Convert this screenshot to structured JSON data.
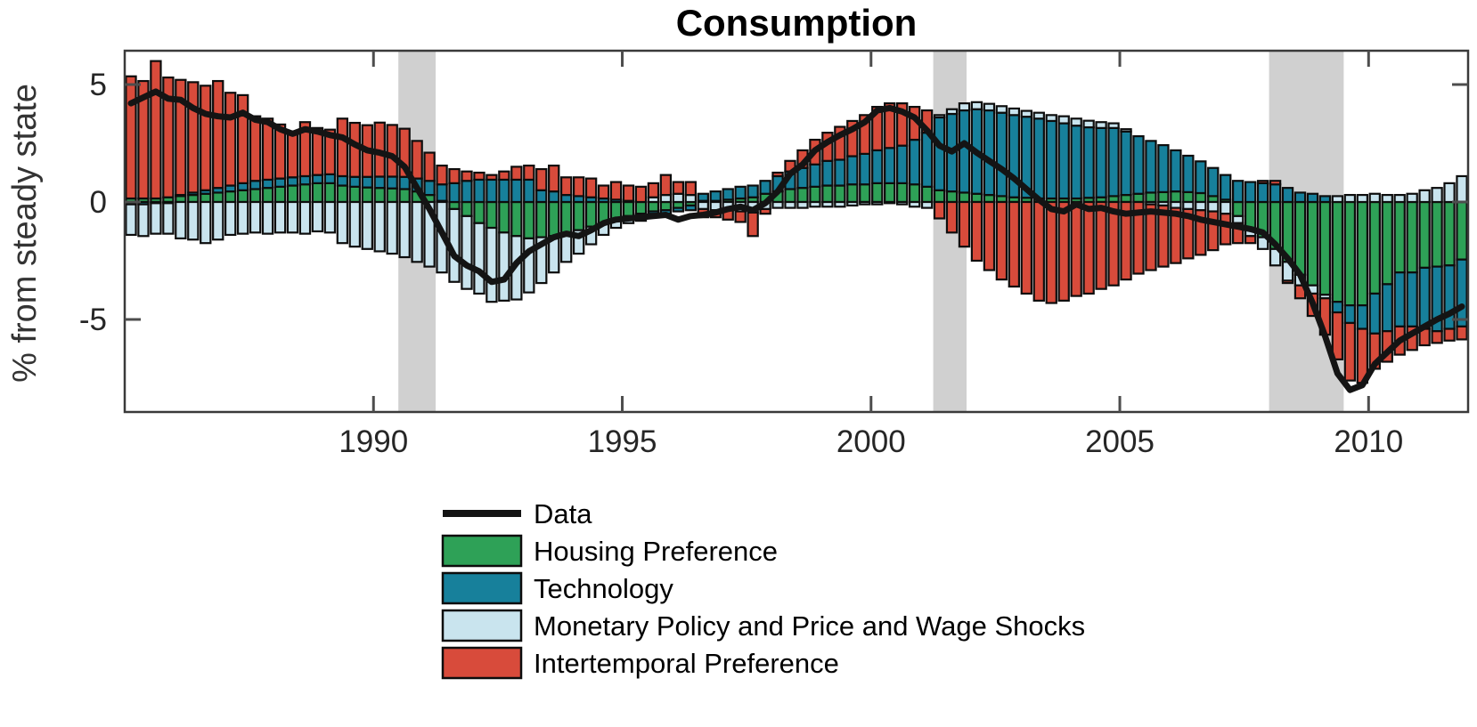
{
  "title": "Consumption",
  "ylabel": "% from steady state",
  "legend": {
    "items": [
      {
        "label": "Data",
        "type": "line",
        "color": "#141414"
      },
      {
        "label": "Housing Preference",
        "type": "box",
        "color": "#2ea157"
      },
      {
        "label": "Technology",
        "type": "box",
        "color": "#17809b"
      },
      {
        "label": "Monetary Policy and Price and Wage Shocks",
        "type": "box",
        "color": "#c9e4ee"
      },
      {
        "label": "Intertemporal Preference",
        "type": "box",
        "color": "#d84b3b"
      }
    ]
  },
  "chart_data": {
    "type": "bar",
    "subtype": "stacked-bars-with-line-overlay",
    "title": "Consumption",
    "xlabel": "",
    "ylabel": "% from steady state",
    "x_start": 1985.0,
    "x_step": 0.25,
    "xlim": [
      1985.0,
      2012.0
    ],
    "ylim": [
      -8.94,
      6.44
    ],
    "x_ticks": [
      1990,
      1995,
      2000,
      2005,
      2010
    ],
    "y_ticks": [
      5,
      0,
      -5
    ],
    "grid": false,
    "legend_position": "below-left",
    "recession_bands": [
      [
        1990.5,
        1991.25
      ],
      [
        2001.25,
        2001.92
      ],
      [
        2008.0,
        2009.5
      ]
    ],
    "band_color": "#d0d0d0",
    "bar_outline_color": "#0d0d0d",
    "line_color": "#141414",
    "stack_order": [
      "housing",
      "technology",
      "monetary",
      "intertemporal"
    ],
    "series": [
      {
        "name": "Housing Preference",
        "key": "housing",
        "color": "#2ea157",
        "values": [
          0.15,
          0.15,
          0.15,
          0.2,
          0.25,
          0.3,
          0.35,
          0.4,
          0.45,
          0.5,
          0.55,
          0.6,
          0.65,
          0.7,
          0.75,
          0.8,
          0.8,
          0.7,
          0.65,
          0.62,
          0.6,
          0.58,
          0.55,
          0.45,
          0.3,
          0.05,
          -0.3,
          -0.6,
          -0.9,
          -1.1,
          -1.3,
          -1.45,
          -1.55,
          -1.5,
          -1.45,
          -1.35,
          -1.2,
          -1.05,
          -0.9,
          -0.75,
          -0.6,
          -0.5,
          -0.4,
          -0.35,
          -0.25,
          -0.15,
          0.05,
          0.05,
          0.1,
          0.15,
          0.2,
          0.35,
          0.45,
          0.55,
          0.6,
          0.65,
          0.7,
          0.7,
          0.75,
          0.75,
          0.8,
          0.8,
          0.8,
          0.75,
          0.65,
          0.5,
          0.45,
          0.4,
          0.35,
          0.3,
          0.25,
          0.2,
          0.18,
          0.15,
          0.15,
          0.15,
          0.15,
          0.18,
          0.2,
          0.25,
          0.3,
          0.35,
          0.4,
          0.42,
          0.45,
          0.42,
          0.38,
          0.25,
          0.1,
          -0.6,
          -1.1,
          -1.5,
          -2.0,
          -2.55,
          -3.1,
          -3.55,
          -3.95,
          -4.25,
          -4.4,
          -4.4,
          -3.9,
          -3.5,
          -3.0,
          -3.0,
          -2.8,
          -2.75,
          -2.7,
          -2.45
        ]
      },
      {
        "name": "Technology",
        "key": "technology",
        "color": "#17809b",
        "values": [
          -0.1,
          -0.1,
          -0.05,
          -0.05,
          0.05,
          0.1,
          0.15,
          0.2,
          0.25,
          0.3,
          0.35,
          0.35,
          0.35,
          0.35,
          0.35,
          0.35,
          0.38,
          0.4,
          0.42,
          0.45,
          0.48,
          0.5,
          0.52,
          0.55,
          0.6,
          0.7,
          0.8,
          0.9,
          0.95,
          0.95,
          0.95,
          0.95,
          0.95,
          0.5,
          0.45,
          0.3,
          0.25,
          0.2,
          0.15,
          0.1,
          0.05,
          -0.05,
          -0.1,
          -0.15,
          -0.15,
          -0.2,
          0.3,
          0.4,
          0.45,
          0.5,
          0.5,
          0.55,
          0.65,
          0.75,
          0.85,
          0.95,
          1.05,
          1.1,
          1.2,
          1.3,
          1.4,
          1.5,
          1.6,
          1.9,
          2.3,
          3.1,
          3.3,
          3.5,
          3.6,
          3.6,
          3.55,
          3.5,
          3.45,
          3.4,
          3.3,
          3.2,
          3.1,
          3.0,
          2.95,
          2.9,
          2.7,
          2.45,
          2.2,
          2.0,
          1.75,
          1.55,
          1.35,
          1.2,
          1.05,
          0.9,
          0.85,
          0.8,
          0.75,
          0.6,
          0.4,
          0.35,
          0.25,
          -0.45,
          -0.75,
          -1.0,
          -1.7,
          -2.0,
          -2.3,
          -2.3,
          -2.6,
          -2.75,
          -2.7,
          -2.85
        ]
      },
      {
        "name": "Monetary Policy and Price and Wage Shocks",
        "key": "monetary",
        "color": "#c9e4ee",
        "values": [
          -1.3,
          -1.35,
          -1.3,
          -1.3,
          -1.55,
          -1.6,
          -1.75,
          -1.6,
          -1.4,
          -1.35,
          -1.3,
          -1.35,
          -1.3,
          -1.3,
          -1.35,
          -1.25,
          -1.3,
          -1.75,
          -1.9,
          -2.0,
          -2.1,
          -2.2,
          -2.35,
          -2.55,
          -2.75,
          -3.0,
          -3.1,
          -3.1,
          -3.0,
          -3.15,
          -2.9,
          -2.7,
          -2.3,
          -1.95,
          -1.55,
          -1.2,
          -1.0,
          -0.75,
          -0.5,
          -0.35,
          -0.3,
          -0.25,
          0.2,
          0.3,
          0.35,
          0.3,
          -0.3,
          -0.35,
          -0.35,
          -0.4,
          -0.45,
          -0.3,
          -0.25,
          -0.25,
          -0.25,
          -0.2,
          -0.2,
          -0.2,
          -0.15,
          -0.1,
          -0.1,
          -0.05,
          -0.1,
          -0.2,
          -0.25,
          0.1,
          0.2,
          0.3,
          0.3,
          0.28,
          0.28,
          0.28,
          0.25,
          0.25,
          0.25,
          0.3,
          0.3,
          0.28,
          0.25,
          0.2,
          0.1,
          0.0,
          -0.1,
          -0.15,
          -0.25,
          -0.3,
          -0.35,
          -0.4,
          -0.5,
          -0.3,
          -0.35,
          -0.5,
          -0.7,
          -0.8,
          -0.45,
          -0.35,
          -0.15,
          0.25,
          0.3,
          0.3,
          0.35,
          0.3,
          0.3,
          0.35,
          0.5,
          0.6,
          0.8,
          1.1
        ]
      },
      {
        "name": "Intertemporal Preference",
        "key": "intertemporal",
        "color": "#d84b3b",
        "values": [
          5.2,
          5.0,
          5.85,
          5.1,
          4.9,
          4.7,
          4.45,
          4.55,
          3.95,
          3.75,
          2.75,
          2.6,
          2.3,
          1.9,
          2.3,
          2.0,
          1.9,
          2.45,
          2.3,
          2.2,
          2.3,
          2.2,
          2.05,
          1.6,
          1.2,
          0.8,
          0.6,
          0.4,
          0.3,
          0.2,
          0.35,
          0.55,
          0.6,
          0.9,
          1.1,
          0.75,
          0.8,
          0.8,
          0.55,
          0.75,
          0.65,
          0.65,
          0.6,
          0.85,
          0.5,
          0.55,
          -0.35,
          -0.3,
          -0.4,
          -0.45,
          -1.0,
          -0.2,
          0.15,
          0.45,
          0.75,
          1.05,
          1.2,
          1.4,
          1.5,
          1.65,
          1.85,
          1.9,
          1.8,
          1.4,
          0.95,
          -0.7,
          -1.3,
          -1.9,
          -2.5,
          -2.9,
          -3.3,
          -3.6,
          -3.9,
          -4.2,
          -4.3,
          -4.2,
          -4.0,
          -3.9,
          -3.7,
          -3.55,
          -3.3,
          -3.05,
          -2.8,
          -2.6,
          -2.35,
          -2.1,
          -1.9,
          -1.65,
          -1.3,
          -0.85,
          -0.3,
          0.1,
          0.15,
          -0.1,
          -0.55,
          -0.95,
          -1.55,
          -2.0,
          -2.45,
          -2.3,
          -1.5,
          -1.3,
          -1.2,
          -1.0,
          -0.7,
          -0.5,
          -0.5,
          -0.55
        ]
      }
    ],
    "line_series": {
      "name": "Data",
      "color": "#141414",
      "values": [
        4.2,
        4.45,
        4.7,
        4.4,
        4.35,
        4.0,
        3.75,
        3.65,
        3.6,
        3.8,
        3.5,
        3.4,
        3.1,
        2.9,
        3.1,
        3.0,
        2.85,
        2.75,
        2.45,
        2.2,
        2.1,
        1.95,
        1.5,
        0.6,
        -0.3,
        -1.3,
        -2.3,
        -2.7,
        -2.95,
        -3.4,
        -3.3,
        -2.6,
        -2.1,
        -1.8,
        -1.5,
        -1.35,
        -1.45,
        -1.2,
        -0.9,
        -0.75,
        -0.7,
        -0.65,
        -0.6,
        -0.55,
        -0.75,
        -0.6,
        -0.55,
        -0.45,
        -0.3,
        -0.2,
        -0.35,
        -0.05,
        0.45,
        1.2,
        1.6,
        2.2,
        2.55,
        2.85,
        3.1,
        3.4,
        3.9,
        4.0,
        3.85,
        3.6,
        3.05,
        2.4,
        2.15,
        2.5,
        2.1,
        1.75,
        1.4,
        1.0,
        0.55,
        0.1,
        -0.3,
        -0.4,
        -0.1,
        -0.3,
        -0.25,
        -0.4,
        -0.5,
        -0.45,
        -0.4,
        -0.45,
        -0.5,
        -0.6,
        -0.75,
        -0.85,
        -0.95,
        -1.05,
        -1.15,
        -1.3,
        -1.8,
        -2.4,
        -3.1,
        -4.3,
        -5.7,
        -7.3,
        -8.0,
        -7.8,
        -6.9,
        -6.4,
        -5.9,
        -5.6,
        -5.3,
        -5.0,
        -4.75,
        -4.45
      ]
    }
  }
}
